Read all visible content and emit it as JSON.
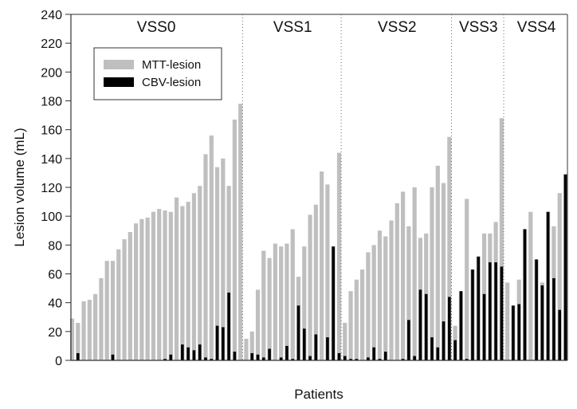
{
  "chart_data": {
    "type": "bar",
    "title": "",
    "xlabel": "Patients",
    "ylabel": "Lesion volume (mL)",
    "ylim": [
      0,
      240
    ],
    "yticks": [
      "0",
      "20",
      "40",
      "60",
      "80",
      "100",
      "120",
      "140",
      "160",
      "180",
      "200",
      "220",
      "240"
    ],
    "grid": false,
    "legend_position": "top-left",
    "colors": {
      "MTT-lesion": "#bfbfbf",
      "CBV-lesion": "#000000"
    },
    "groups": [
      {
        "name": "VSS0",
        "mtt": [
          29,
          26,
          41,
          42,
          46,
          57,
          69,
          69,
          77,
          84,
          89,
          95,
          98,
          99,
          103,
          105,
          104,
          103,
          113,
          107,
          110,
          116,
          121,
          143,
          156,
          134,
          140,
          121,
          167,
          178
        ],
        "cbv": [
          0,
          5,
          0,
          0,
          0,
          0,
          0,
          4,
          0,
          0,
          0,
          0,
          0,
          0,
          0,
          0,
          1,
          4,
          0,
          11,
          9,
          7,
          11,
          2,
          1,
          24,
          23,
          47,
          6,
          0
        ]
      },
      {
        "name": "VSS1",
        "mtt": [
          15,
          20,
          49,
          76,
          71,
          81,
          79,
          81,
          91,
          58,
          79,
          101,
          108,
          131,
          122,
          79,
          144
        ],
        "cbv": [
          0,
          5,
          4,
          2,
          8,
          0,
          2,
          10,
          1,
          38,
          22,
          3,
          18,
          0,
          16,
          79,
          5
        ]
      },
      {
        "name": "VSS2",
        "mtt": [
          26,
          48,
          56,
          63,
          75,
          80,
          90,
          86,
          97,
          109,
          117,
          93,
          120,
          85,
          88,
          120,
          135,
          123,
          155
        ],
        "cbv": [
          3,
          1,
          1,
          0,
          2,
          9,
          1,
          6,
          0,
          0,
          1,
          28,
          3,
          49,
          46,
          16,
          9,
          27,
          44
        ]
      },
      {
        "name": "VSS3",
        "mtt": [
          24,
          48,
          112,
          63,
          72,
          88,
          88,
          96,
          168
        ],
        "cbv": [
          14,
          48,
          1,
          63,
          72,
          46,
          68,
          68,
          65
        ]
      },
      {
        "name": "VSS4",
        "mtt": [
          54,
          38,
          56,
          91,
          103,
          70,
          54,
          103,
          93,
          116,
          129
        ],
        "cbv": [
          0,
          38,
          39,
          91,
          0,
          70,
          52,
          103,
          57,
          35,
          129
        ]
      }
    ],
    "series": [
      {
        "name": "MTT-lesion"
      },
      {
        "name": "CBV-lesion"
      }
    ]
  }
}
